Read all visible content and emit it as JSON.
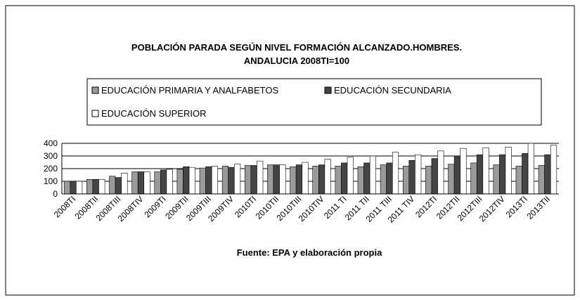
{
  "chart_data": {
    "type": "bar",
    "title": "POBLACIÓN PARADA SEGÚN NIVEL FORMACIÓN ALCANZADO.HOMBRES.",
    "subtitle": "ANDALUCIA 2008TI=100",
    "source": "Fuente: EPA y elaboración propia",
    "categories": [
      "2008TI",
      "2008TII",
      "2008TIII",
      "2008TIV",
      "2009TI",
      "2009TII",
      "2009TIII",
      "2009TIV",
      "2010TI",
      "2010TII",
      "2010TIII",
      "2010TIV",
      "2011 TI",
      "2011 TII",
      "2011 TIII",
      "2011 TIV",
      "2012TI",
      "2012TII",
      "2012TIII",
      "2012TIV",
      "2013TI",
      "2013TII"
    ],
    "series": [
      {
        "name": "EDUCACIÓN PRIMARIA Y ANALFABETOS",
        "color": "#9a9a9a",
        "values": [
          100,
          115,
          140,
          175,
          175,
          195,
          205,
          220,
          225,
          230,
          215,
          220,
          220,
          215,
          230,
          220,
          220,
          235,
          245,
          230,
          220,
          225
        ]
      },
      {
        "name": "EDUCACIÓN SECUNDARIA",
        "color": "#454545",
        "values": [
          100,
          115,
          130,
          175,
          190,
          215,
          215,
          210,
          225,
          230,
          230,
          230,
          245,
          245,
          245,
          265,
          280,
          300,
          310,
          310,
          320,
          310
        ]
      },
      {
        "name": "EDUCACIÓN SUPERIOR",
        "color": "#ffffff",
        "values": [
          100,
          115,
          165,
          175,
          195,
          210,
          220,
          235,
          260,
          230,
          250,
          275,
          290,
          300,
          330,
          310,
          340,
          360,
          365,
          370,
          400,
          385
        ]
      }
    ],
    "ylim": [
      0,
      400
    ],
    "yticks": [
      0,
      100,
      200,
      300,
      400
    ],
    "grid": true
  }
}
